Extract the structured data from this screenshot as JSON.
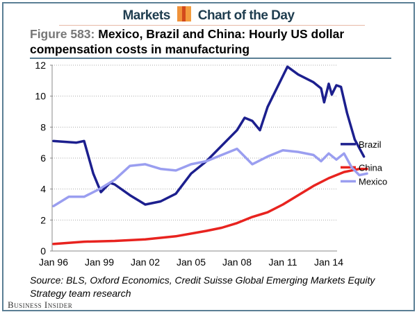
{
  "header": {
    "left": "Markets",
    "right": "Chart of the Day"
  },
  "title": {
    "figure": "Figure 583:",
    "text": "Mexico, Brazil and China: Hourly US dollar compensation costs in manufacturing"
  },
  "source": "Source: BLS, Oxford Economics, Credit Suisse Global Emerging Markets Equity Strategy team research",
  "publisher": "Business Insider",
  "chart_data": {
    "type": "line",
    "title": "Mexico, Brazil and China: Hourly US dollar compensation costs in manufacturing",
    "xlabel": "",
    "ylabel": "",
    "ylim": [
      0,
      12
    ],
    "yticks": [
      "0",
      "2",
      "4",
      "6",
      "8",
      "10",
      "12"
    ],
    "xticks": [
      "Jan 96",
      "Jan 99",
      "Jan 02",
      "Jan 05",
      "Jan 08",
      "Jan 11",
      "Jan 14"
    ],
    "grid": "horizontal dotted",
    "legend": "right",
    "series": [
      {
        "name": "Brazil",
        "color": "#1c1f8e",
        "points": [
          [
            1996,
            7.1
          ],
          [
            1997.5,
            7.0
          ],
          [
            1998,
            7.1
          ],
          [
            1998.6,
            5.0
          ],
          [
            1999.1,
            3.8
          ],
          [
            1999.7,
            4.4
          ],
          [
            2000,
            4.3
          ],
          [
            2001,
            3.6
          ],
          [
            2002,
            3.0
          ],
          [
            2003,
            3.2
          ],
          [
            2004,
            3.7
          ],
          [
            2005,
            5.0
          ],
          [
            2006,
            5.8
          ],
          [
            2007,
            6.8
          ],
          [
            2008,
            7.8
          ],
          [
            2008.5,
            8.6
          ],
          [
            2009,
            8.4
          ],
          [
            2009.5,
            7.8
          ],
          [
            2010,
            9.3
          ],
          [
            2011,
            11.3
          ],
          [
            2011.3,
            11.9
          ],
          [
            2012,
            11.4
          ],
          [
            2013,
            10.9
          ],
          [
            2013.5,
            10.5
          ],
          [
            2013.7,
            9.6
          ],
          [
            2014,
            10.8
          ],
          [
            2014.2,
            10.1
          ],
          [
            2014.5,
            10.7
          ],
          [
            2014.8,
            10.6
          ],
          [
            2015.2,
            8.9
          ],
          [
            2015.7,
            7.2
          ],
          [
            2016.3,
            6.1
          ]
        ]
      },
      {
        "name": "China",
        "color": "#e8231f",
        "points": [
          [
            1996,
            0.45
          ],
          [
            1998,
            0.6
          ],
          [
            2000,
            0.65
          ],
          [
            2002,
            0.75
          ],
          [
            2004,
            0.95
          ],
          [
            2006,
            1.3
          ],
          [
            2007,
            1.5
          ],
          [
            2008,
            1.8
          ],
          [
            2009,
            2.2
          ],
          [
            2010,
            2.5
          ],
          [
            2011,
            3.0
          ],
          [
            2012,
            3.6
          ],
          [
            2013,
            4.2
          ],
          [
            2014,
            4.7
          ],
          [
            2015,
            5.1
          ],
          [
            2016,
            5.3
          ],
          [
            2016.5,
            5.3
          ]
        ]
      },
      {
        "name": "Mexico",
        "color": "#9a9ef0",
        "points": [
          [
            1996,
            2.9
          ],
          [
            1997,
            3.5
          ],
          [
            1998,
            3.5
          ],
          [
            1999,
            4.0
          ],
          [
            2000,
            4.6
          ],
          [
            2001,
            5.5
          ],
          [
            2002,
            5.6
          ],
          [
            2003,
            5.3
          ],
          [
            2004,
            5.2
          ],
          [
            2005,
            5.6
          ],
          [
            2006,
            5.8
          ],
          [
            2007,
            6.2
          ],
          [
            2008,
            6.6
          ],
          [
            2009,
            5.6
          ],
          [
            2010,
            6.1
          ],
          [
            2011,
            6.5
          ],
          [
            2012,
            6.4
          ],
          [
            2013,
            6.2
          ],
          [
            2013.5,
            5.8
          ],
          [
            2014,
            6.3
          ],
          [
            2014.5,
            5.9
          ],
          [
            2015,
            6.3
          ],
          [
            2015.5,
            5.4
          ],
          [
            2016,
            4.9
          ],
          [
            2016.5,
            5.0
          ]
        ]
      }
    ]
  }
}
